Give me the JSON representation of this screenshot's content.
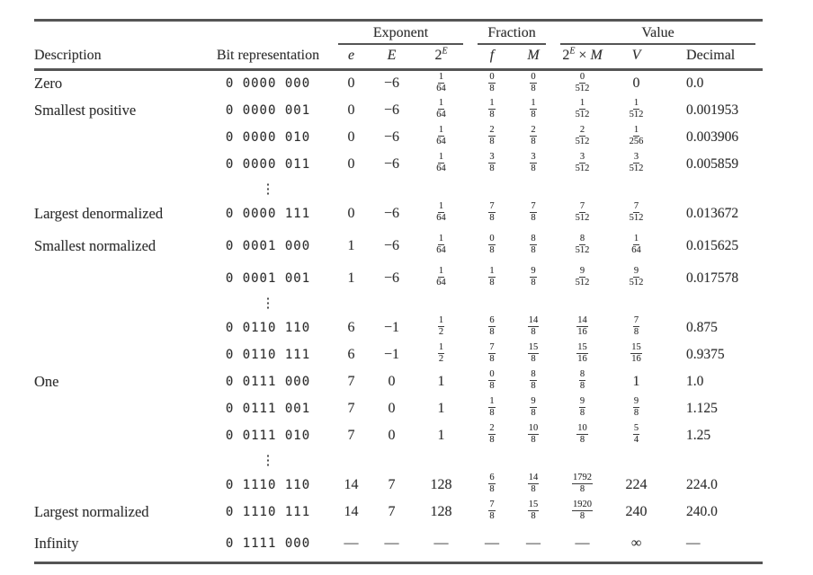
{
  "colors": {
    "text": "#2f2f2f",
    "rule": "#555555",
    "background": "#ffffff"
  },
  "table": {
    "groups": [
      {
        "label": "Exponent"
      },
      {
        "label": "Fraction"
      },
      {
        "label": "Value"
      }
    ],
    "col_headers": {
      "description": "Description",
      "bits": "Bit representation",
      "e": "e",
      "E": "E",
      "pow_base": "2",
      "pow_sup": "E",
      "f": "f",
      "M": "M",
      "prod_base": "2",
      "prod_sup": "E",
      "prod_times": " × ",
      "prod_m": "M",
      "V": "V",
      "decimal": "Decimal"
    },
    "dots_glyph": "⋮",
    "rows": [
      {
        "desc": "Zero",
        "bits": "0 0000 000",
        "e": "0",
        "E": "−6",
        "p2E": {
          "n": "1",
          "d": "64"
        },
        "f": {
          "n": "0",
          "d": "8"
        },
        "M": {
          "n": "0",
          "d": "8"
        },
        "prod": {
          "n": "0",
          "d": "512"
        },
        "V": "0",
        "dec": "0.0"
      },
      {
        "desc": "Smallest positive",
        "bits": "0 0000 001",
        "e": "0",
        "E": "−6",
        "p2E": {
          "n": "1",
          "d": "64"
        },
        "f": {
          "n": "1",
          "d": "8"
        },
        "M": {
          "n": "1",
          "d": "8"
        },
        "prod": {
          "n": "1",
          "d": "512"
        },
        "V": {
          "n": "1",
          "d": "512"
        },
        "dec": "0.001953"
      },
      {
        "desc": "",
        "bits": "0 0000 010",
        "e": "0",
        "E": "−6",
        "p2E": {
          "n": "1",
          "d": "64"
        },
        "f": {
          "n": "2",
          "d": "8"
        },
        "M": {
          "n": "2",
          "d": "8"
        },
        "prod": {
          "n": "2",
          "d": "512"
        },
        "V": {
          "n": "1",
          "d": "256"
        },
        "dec": "0.003906"
      },
      {
        "desc": "",
        "bits": "0 0000 011",
        "e": "0",
        "E": "−6",
        "p2E": {
          "n": "1",
          "d": "64"
        },
        "f": {
          "n": "3",
          "d": "8"
        },
        "M": {
          "n": "3",
          "d": "8"
        },
        "prod": {
          "n": "3",
          "d": "512"
        },
        "V": {
          "n": "3",
          "d": "512"
        },
        "dec": "0.005859"
      },
      {
        "type": "dots"
      },
      {
        "desc": "Largest denormalized",
        "bits": "0 0000 111",
        "e": "0",
        "E": "−6",
        "p2E": {
          "n": "1",
          "d": "64"
        },
        "f": {
          "n": "7",
          "d": "8"
        },
        "M": {
          "n": "7",
          "d": "8"
        },
        "prod": {
          "n": "7",
          "d": "512"
        },
        "V": {
          "n": "7",
          "d": "512"
        },
        "dec": "0.013672"
      },
      {
        "desc": "Smallest normalized",
        "tall": true,
        "bits": "0 0001 000",
        "e": "1",
        "E": "−6",
        "p2E": {
          "n": "1",
          "d": "64"
        },
        "f": {
          "n": "0",
          "d": "8"
        },
        "M": {
          "n": "8",
          "d": "8"
        },
        "prod": {
          "n": "8",
          "d": "512"
        },
        "V": {
          "n": "1",
          "d": "64"
        },
        "dec": "0.015625"
      },
      {
        "desc": "",
        "bits": "0 0001 001",
        "e": "1",
        "E": "−6",
        "p2E": {
          "n": "1",
          "d": "64"
        },
        "f": {
          "n": "1",
          "d": "8"
        },
        "M": {
          "n": "9",
          "d": "8"
        },
        "prod": {
          "n": "9",
          "d": "512"
        },
        "V": {
          "n": "9",
          "d": "512"
        },
        "dec": "0.017578"
      },
      {
        "type": "dots"
      },
      {
        "desc": "",
        "bits": "0 0110 110",
        "e": "6",
        "E": "−1",
        "p2E": {
          "n": "1",
          "d": "2"
        },
        "f": {
          "n": "6",
          "d": "8"
        },
        "M": {
          "n": "14",
          "d": "8"
        },
        "prod": {
          "n": "14",
          "d": "16"
        },
        "V": {
          "n": "7",
          "d": "8"
        },
        "dec": "0.875"
      },
      {
        "desc": "",
        "bits": "0 0110 111",
        "e": "6",
        "E": "−1",
        "p2E": {
          "n": "1",
          "d": "2"
        },
        "f": {
          "n": "7",
          "d": "8"
        },
        "M": {
          "n": "15",
          "d": "8"
        },
        "prod": {
          "n": "15",
          "d": "16"
        },
        "V": {
          "n": "15",
          "d": "16"
        },
        "dec": "0.9375"
      },
      {
        "desc": "One",
        "bits": "0 0111 000",
        "e": "7",
        "E": "0",
        "p2E": "1",
        "f": {
          "n": "0",
          "d": "8"
        },
        "M": {
          "n": "8",
          "d": "8"
        },
        "prod": {
          "n": "8",
          "d": "8"
        },
        "V": "1",
        "dec": "1.0"
      },
      {
        "desc": "",
        "bits": "0 0111 001",
        "e": "7",
        "E": "0",
        "p2E": "1",
        "f": {
          "n": "1",
          "d": "8"
        },
        "M": {
          "n": "9",
          "d": "8"
        },
        "prod": {
          "n": "9",
          "d": "8"
        },
        "V": {
          "n": "9",
          "d": "8"
        },
        "dec": "1.125"
      },
      {
        "desc": "",
        "bits": "0 0111 010",
        "e": "7",
        "E": "0",
        "p2E": "1",
        "f": {
          "n": "2",
          "d": "8"
        },
        "M": {
          "n": "10",
          "d": "8"
        },
        "prod": {
          "n": "10",
          "d": "8"
        },
        "V": {
          "n": "5",
          "d": "4"
        },
        "dec": "1.25"
      },
      {
        "type": "dots"
      },
      {
        "desc": "",
        "bits": "0 1110 110",
        "e": "14",
        "E": "7",
        "p2E": "128",
        "f": {
          "n": "6",
          "d": "8"
        },
        "M": {
          "n": "14",
          "d": "8"
        },
        "prod": {
          "n": "1792",
          "d": "8"
        },
        "V": "224",
        "dec": "224.0"
      },
      {
        "desc": "Largest normalized",
        "bits": "0 1110 111",
        "e": "14",
        "E": "7",
        "p2E": "128",
        "f": {
          "n": "7",
          "d": "8"
        },
        "M": {
          "n": "15",
          "d": "8"
        },
        "prod": {
          "n": "1920",
          "d": "8"
        },
        "V": "240",
        "dec": "240.0"
      },
      {
        "desc": "Infinity",
        "tall": true,
        "bits": "0 1111 000",
        "e": "—",
        "E": "—",
        "p2E": "—",
        "f": "—",
        "M": "—",
        "prod": "—",
        "V": "∞",
        "dec": "—"
      }
    ]
  }
}
